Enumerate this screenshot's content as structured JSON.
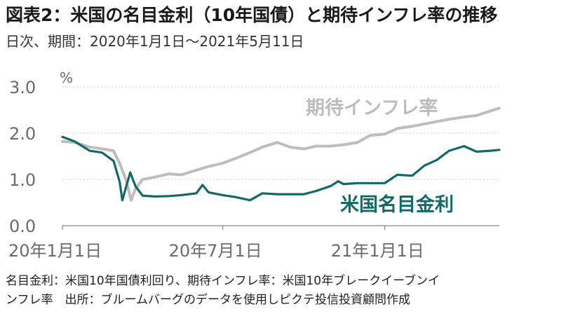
{
  "title": "図表2：米国の名目金利（10年国債）と期待インフレ率の推移",
  "subtitle": "日次、期間：2020年1月1日～2021年5月11日",
  "notes": [
    "名目金利：米国10年国債利回り、期待インフレ率：米国10年ブレークイーブンイ",
    "ンフレ率　出所：ブルームバーグのデータを使用しピクテ投信投資顧問作成"
  ],
  "colors": {
    "nominal": "#13686a",
    "inflation": "#bdbdbd",
    "axis": "#9a9a9a",
    "grid": "#cfcfcf",
    "label": "#6b6b6b"
  },
  "chart_data": {
    "type": "line",
    "ylabel": "%",
    "ylim": [
      0,
      3
    ],
    "yticks": [
      "0.0",
      "1.0",
      "2.0",
      "3.0"
    ],
    "xlim": [
      "2020-01-01",
      "2021-05-11"
    ],
    "xticks": [
      {
        "date": "2020-01-01",
        "label": "20年1月1日"
      },
      {
        "date": "2020-07-01",
        "label": "20年7月1日"
      },
      {
        "date": "2021-01-01",
        "label": "21年1月1日"
      }
    ],
    "grid": "horizontal",
    "series": [
      {
        "name": "期待インフレ率",
        "key": "inflation",
        "points": [
          [
            "2020-01-01",
            1.82
          ],
          [
            "2020-01-15",
            1.8
          ],
          [
            "2020-02-01",
            1.7
          ],
          [
            "2020-02-15",
            1.66
          ],
          [
            "2020-02-28",
            1.62
          ],
          [
            "2020-03-06",
            1.35
          ],
          [
            "2020-03-13",
            1.0
          ],
          [
            "2020-03-19",
            0.55
          ],
          [
            "2020-03-24",
            0.8
          ],
          [
            "2020-04-01",
            1.0
          ],
          [
            "2020-04-15",
            1.05
          ],
          [
            "2020-05-01",
            1.12
          ],
          [
            "2020-05-15",
            1.1
          ],
          [
            "2020-06-01",
            1.2
          ],
          [
            "2020-06-15",
            1.28
          ],
          [
            "2020-07-01",
            1.35
          ],
          [
            "2020-07-15",
            1.45
          ],
          [
            "2020-08-01",
            1.58
          ],
          [
            "2020-08-15",
            1.7
          ],
          [
            "2020-09-01",
            1.8
          ],
          [
            "2020-09-15",
            1.7
          ],
          [
            "2020-10-01",
            1.66
          ],
          [
            "2020-10-15",
            1.72
          ],
          [
            "2020-11-01",
            1.72
          ],
          [
            "2020-11-15",
            1.75
          ],
          [
            "2020-12-01",
            1.8
          ],
          [
            "2020-12-15",
            1.95
          ],
          [
            "2021-01-01",
            1.98
          ],
          [
            "2021-01-15",
            2.1
          ],
          [
            "2021-02-01",
            2.15
          ],
          [
            "2021-02-15",
            2.2
          ],
          [
            "2021-03-01",
            2.25
          ],
          [
            "2021-03-15",
            2.3
          ],
          [
            "2021-04-01",
            2.35
          ],
          [
            "2021-04-15",
            2.38
          ],
          [
            "2021-05-01",
            2.48
          ],
          [
            "2021-05-11",
            2.54
          ]
        ]
      },
      {
        "name": "米国名目金利",
        "key": "nominal",
        "points": [
          [
            "2020-01-01",
            1.92
          ],
          [
            "2020-01-15",
            1.82
          ],
          [
            "2020-02-01",
            1.62
          ],
          [
            "2020-02-15",
            1.58
          ],
          [
            "2020-02-28",
            1.4
          ],
          [
            "2020-03-06",
            0.95
          ],
          [
            "2020-03-09",
            0.55
          ],
          [
            "2020-03-18",
            1.15
          ],
          [
            "2020-03-24",
            0.85
          ],
          [
            "2020-04-01",
            0.65
          ],
          [
            "2020-04-15",
            0.63
          ],
          [
            "2020-05-01",
            0.64
          ],
          [
            "2020-05-15",
            0.66
          ],
          [
            "2020-06-01",
            0.7
          ],
          [
            "2020-06-08",
            0.88
          ],
          [
            "2020-06-15",
            0.72
          ],
          [
            "2020-07-01",
            0.66
          ],
          [
            "2020-07-15",
            0.62
          ],
          [
            "2020-08-01",
            0.55
          ],
          [
            "2020-08-15",
            0.7
          ],
          [
            "2020-09-01",
            0.68
          ],
          [
            "2020-09-15",
            0.68
          ],
          [
            "2020-10-01",
            0.68
          ],
          [
            "2020-10-15",
            0.75
          ],
          [
            "2020-11-01",
            0.86
          ],
          [
            "2020-11-09",
            0.96
          ],
          [
            "2020-11-15",
            0.9
          ],
          [
            "2020-12-01",
            0.92
          ],
          [
            "2020-12-15",
            0.92
          ],
          [
            "2021-01-01",
            0.92
          ],
          [
            "2021-01-15",
            1.1
          ],
          [
            "2021-02-01",
            1.08
          ],
          [
            "2021-02-15",
            1.3
          ],
          [
            "2021-03-01",
            1.42
          ],
          [
            "2021-03-15",
            1.62
          ],
          [
            "2021-04-01",
            1.72
          ],
          [
            "2021-04-15",
            1.6
          ],
          [
            "2021-05-01",
            1.62
          ],
          [
            "2021-05-11",
            1.64
          ]
        ]
      }
    ]
  }
}
